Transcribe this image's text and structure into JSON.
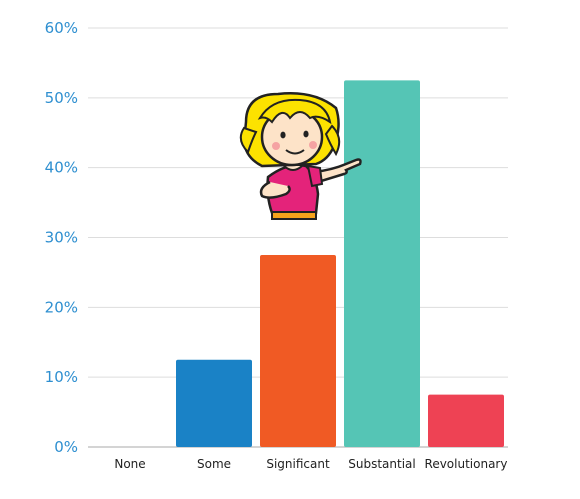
{
  "chart_data": {
    "type": "bar",
    "categories": [
      "None",
      "Some",
      "Significant",
      "Substantial",
      "Revolutionary"
    ],
    "values": [
      0,
      12.5,
      27.5,
      52.5,
      7.5
    ],
    "colors": [
      "#1a82c6",
      "#1a82c6",
      "#f05a24",
      "#55c5b5",
      "#ee4254"
    ],
    "ylim": [
      0,
      60
    ],
    "yticks": [
      0,
      10,
      20,
      30,
      40,
      50,
      60
    ],
    "ytick_suffix": "%",
    "grid": true,
    "legend": "none",
    "title": "",
    "xlabel": "",
    "ylabel": ""
  },
  "illustration": {
    "icon": "cartoon-girl-pointing-icon",
    "hair_color": "#fce200",
    "shirt_color": "#e4237a"
  }
}
